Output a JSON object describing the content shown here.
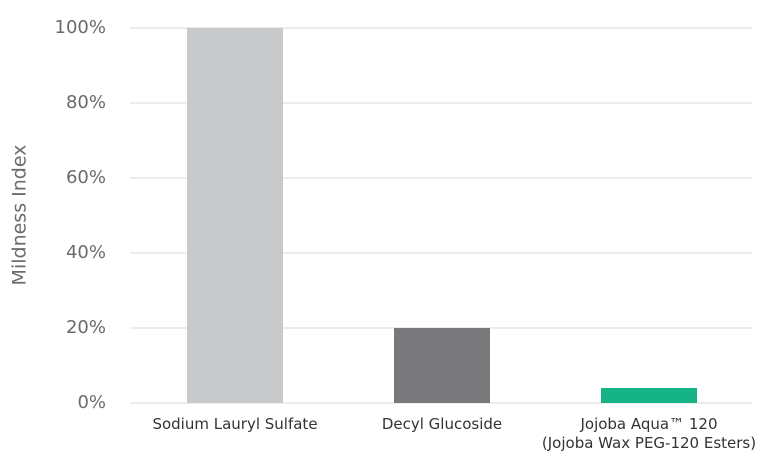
{
  "chart_data": {
    "type": "bar",
    "y_label": "Mildness Index",
    "categories": [
      "Sodium Lauryl Sulfate",
      "Decyl Glucoside",
      "Jojoba Aqua™ 120\n(Jojoba Wax PEG-120 Esters)"
    ],
    "values": [
      100,
      20,
      4
    ],
    "colors": [
      "#c8c9cb",
      "#79797b",
      "#16b386"
    ],
    "ylim": [
      0,
      100
    ],
    "yticks": [
      {
        "value": 0,
        "label": "0%"
      },
      {
        "value": 20,
        "label": "20%"
      },
      {
        "value": 40,
        "label": "40%"
      },
      {
        "value": 60,
        "label": "60%"
      },
      {
        "value": 80,
        "label": "80%"
      },
      {
        "value": 100,
        "label": "100%"
      }
    ],
    "grid": true
  }
}
